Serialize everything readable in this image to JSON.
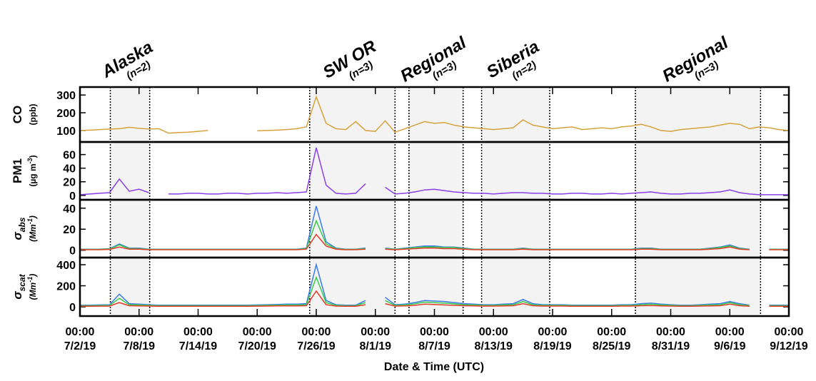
{
  "chart_data": {
    "type": "line",
    "xlabel": "Date & Time (UTC)",
    "xlim": [
      "2019-07-02T00:00",
      "2019-09-12T00:00"
    ],
    "xticks": [
      {
        "value": "2019-07-02T00:00",
        "label": [
          "00:00",
          "7/2/19"
        ]
      },
      {
        "value": "2019-07-08T00:00",
        "label": [
          "00:00",
          "7/8/19"
        ]
      },
      {
        "value": "2019-07-14T00:00",
        "label": [
          "00:00",
          "7/14/19"
        ]
      },
      {
        "value": "2019-07-20T00:00",
        "label": [
          "00:00",
          "7/20/19"
        ]
      },
      {
        "value": "2019-07-26T00:00",
        "label": [
          "00:00",
          "7/26/19"
        ]
      },
      {
        "value": "2019-08-01T00:00",
        "label": [
          "00:00",
          "8/1/19"
        ]
      },
      {
        "value": "2019-08-07T00:00",
        "label": [
          "00:00",
          "8/7/19"
        ]
      },
      {
        "value": "2019-08-13T00:00",
        "label": [
          "00:00",
          "8/13/19"
        ]
      },
      {
        "value": "2019-08-19T00:00",
        "label": [
          "00:00",
          "8/19/19"
        ]
      },
      {
        "value": "2019-08-25T00:00",
        "label": [
          "00:00",
          "8/25/19"
        ]
      },
      {
        "value": "2019-08-31T00:00",
        "label": [
          "00:00",
          "8/31/19"
        ]
      },
      {
        "value": "2019-09-06T00:00",
        "label": [
          "00:00",
          "9/6/19"
        ]
      },
      {
        "value": "2019-09-12T00:00",
        "label": [
          "00:00",
          "9/12/19"
        ]
      }
    ],
    "events": [
      {
        "name": "Alaska",
        "n": "(n=2)",
        "start": "2019-07-05T02:00",
        "end": "2019-07-09T02:00"
      },
      {
        "name": "SW OR",
        "n": "(n=3)",
        "start": "2019-07-25T08:00",
        "end": "2019-08-03T00:00"
      },
      {
        "name": "Regional",
        "n": "(n=3)",
        "start": "2019-08-04T10:00",
        "end": "2019-08-09T22:00"
      },
      {
        "name": "Siberia",
        "n": "(n=2)",
        "start": "2019-08-11T19:00",
        "end": "2019-08-18T17:00"
      },
      {
        "name": "Regional",
        "n": "(n=3)",
        "start": "2019-08-27T10:00",
        "end": "2019-09-09T03:00"
      }
    ],
    "x": [
      "2019-07-02",
      "2019-07-03",
      "2019-07-04",
      "2019-07-05",
      "2019-07-06",
      "2019-07-07",
      "2019-07-08",
      "2019-07-09",
      "2019-07-10",
      "2019-07-11",
      "2019-07-12",
      "2019-07-13",
      "2019-07-14",
      "2019-07-15",
      "2019-07-16",
      "2019-07-17",
      "2019-07-18",
      "2019-07-19",
      "2019-07-20",
      "2019-07-21",
      "2019-07-22",
      "2019-07-23",
      "2019-07-24",
      "2019-07-25",
      "2019-07-26",
      "2019-07-27",
      "2019-07-28",
      "2019-07-29",
      "2019-07-30",
      "2019-07-31",
      "2019-08-01",
      "2019-08-02",
      "2019-08-03",
      "2019-08-04",
      "2019-08-05",
      "2019-08-06",
      "2019-08-07",
      "2019-08-08",
      "2019-08-09",
      "2019-08-10",
      "2019-08-11",
      "2019-08-12",
      "2019-08-13",
      "2019-08-14",
      "2019-08-15",
      "2019-08-16",
      "2019-08-17",
      "2019-08-18",
      "2019-08-19",
      "2019-08-20",
      "2019-08-21",
      "2019-08-22",
      "2019-08-23",
      "2019-08-24",
      "2019-08-25",
      "2019-08-26",
      "2019-08-27",
      "2019-08-28",
      "2019-08-29",
      "2019-08-30",
      "2019-08-31",
      "2019-09-01",
      "2019-09-02",
      "2019-09-03",
      "2019-09-04",
      "2019-09-05",
      "2019-09-06",
      "2019-09-07",
      "2019-09-08",
      "2019-09-09",
      "2019-09-10",
      "2019-09-11",
      "2019-09-12"
    ],
    "panels": [
      {
        "ylabel": "CO",
        "unit": "(ppb)",
        "italic": false,
        "ylim": [
          35,
          345
        ],
        "yticks": [
          100,
          200,
          300
        ],
        "series": [
          {
            "color": "#d6a23d",
            "values": [
              100,
              102,
              105,
              108,
              110,
              118,
              112,
              108,
              110,
              85,
              88,
              90,
              95,
              100,
              null,
              null,
              null,
              null,
              98,
              100,
              102,
              105,
              110,
              120,
              290,
              140,
              110,
              105,
              150,
              100,
              95,
              155,
              90,
              110,
              130,
              150,
              140,
              145,
              130,
              120,
              115,
              110,
              105,
              110,
              115,
              160,
              130,
              120,
              110,
              115,
              120,
              105,
              110,
              115,
              110,
              120,
              125,
              135,
              120,
              100,
              95,
              105,
              110,
              115,
              120,
              130,
              140,
              135,
              110,
              120,
              115,
              105,
              100
            ]
          }
        ]
      },
      {
        "ylabel": "PM1",
        "unit": "(µg m",
        "unit_sup": "-3",
        "unit_end": ")",
        "italic": false,
        "ylim": [
          -6.5,
          78.5
        ],
        "yticks": [
          0,
          20,
          40,
          60
        ],
        "series": [
          {
            "color": "#8b3fe6",
            "values": [
              1,
              2,
              3,
              4,
              24,
              6,
              9,
              4,
              null,
              2,
              2,
              3,
              3,
              2,
              2,
              3,
              3,
              2,
              3,
              3,
              4,
              3,
              4,
              5,
              70,
              15,
              3,
              2,
              3,
              17,
              null,
              12,
              2,
              3,
              5,
              8,
              9,
              7,
              5,
              4,
              3,
              3,
              2,
              3,
              4,
              4,
              3,
              3,
              2,
              2,
              3,
              3,
              2,
              2,
              3,
              2,
              3,
              4,
              5,
              3,
              2,
              2,
              3,
              3,
              4,
              5,
              8,
              4,
              2,
              1,
              1,
              1,
              1
            ]
          }
        ]
      },
      {
        "ylabel": "σ",
        "ylabel_sub": "abs",
        "unit": "(Mm",
        "unit_sup": "-1",
        "unit_end": ")",
        "italic": true,
        "ylim": [
          -7,
          48
        ],
        "yticks": [
          0,
          20,
          40
        ],
        "series": [
          {
            "color": "#3a7be8",
            "values": [
              1,
              1,
              1,
              1.5,
              6,
              2,
              2,
              1,
              1,
              1,
              1,
              1,
              1,
              1,
              1,
              1,
              1,
              1,
              1,
              1,
              1,
              1,
              1,
              2,
              42,
              8,
              2,
              1,
              1,
              2,
              null,
              2,
              1,
              2,
              3,
              4,
              4,
              3,
              3,
              2,
              1,
              1,
              1,
              1,
              1,
              2,
              1,
              1,
              1,
              1,
              1,
              1,
              1,
              1,
              1,
              1,
              1,
              2,
              2,
              1,
              1,
              1,
              1,
              1,
              2,
              3,
              5,
              2,
              1,
              null,
              1,
              1,
              1
            ]
          },
          {
            "color": "#3ccc4a",
            "values": [
              0.8,
              0.8,
              0.8,
              1.2,
              5,
              1.5,
              1.5,
              0.8,
              0.8,
              0.8,
              0.8,
              0.8,
              0.8,
              0.8,
              0.8,
              0.8,
              0.8,
              0.8,
              0.8,
              0.8,
              0.8,
              0.8,
              0.8,
              1.5,
              28,
              6,
              1.5,
              0.8,
              0.8,
              1.5,
              null,
              1.5,
              0.8,
              1.5,
              2.5,
              3,
              3,
              2.5,
              2.5,
              1.5,
              0.8,
              0.8,
              0.8,
              0.8,
              0.8,
              1.5,
              0.8,
              0.8,
              0.8,
              0.8,
              0.8,
              0.8,
              0.8,
              0.8,
              0.8,
              0.8,
              0.8,
              1.5,
              1.5,
              0.8,
              0.8,
              0.8,
              0.8,
              0.8,
              1.5,
              2.5,
              4,
              1.5,
              0.8,
              null,
              0.8,
              0.8,
              0.8
            ]
          },
          {
            "color": "#e33b2b",
            "values": [
              0.5,
              0.5,
              0.5,
              0.8,
              3,
              1,
              1,
              0.5,
              0.5,
              0.5,
              0.5,
              0.5,
              0.5,
              0.5,
              0.5,
              0.5,
              0.5,
              0.5,
              0.5,
              0.5,
              0.5,
              0.5,
              0.5,
              1,
              15,
              4,
              1,
              0.5,
              0.5,
              1,
              null,
              1,
              0.5,
              1,
              1.5,
              2,
              2,
              1.5,
              1.5,
              1,
              0.5,
              0.5,
              0.5,
              0.5,
              0.5,
              1,
              0.5,
              0.5,
              0.5,
              0.5,
              0.5,
              0.5,
              0.5,
              0.5,
              0.5,
              0.5,
              0.5,
              1,
              1,
              0.5,
              0.5,
              0.5,
              0.5,
              0.5,
              1,
              1.5,
              3,
              1,
              0.5,
              null,
              0.5,
              0.5,
              0.5
            ]
          }
        ]
      },
      {
        "ylabel": "σ",
        "ylabel_sub": "scat",
        "unit": "(Mm",
        "unit_sup": "-1",
        "unit_end": ")",
        "italic": true,
        "ylim": [
          -88,
          468
        ],
        "yticks": [
          0,
          200,
          400
        ],
        "series": [
          {
            "color": "#3a7be8",
            "values": [
              15,
              15,
              18,
              20,
              120,
              30,
              25,
              20,
              15,
              15,
              15,
              15,
              15,
              15,
              15,
              15,
              15,
              15,
              18,
              20,
              22,
              25,
              25,
              30,
              400,
              60,
              20,
              15,
              15,
              60,
              null,
              90,
              20,
              25,
              40,
              60,
              55,
              50,
              40,
              30,
              25,
              20,
              20,
              25,
              30,
              70,
              30,
              20,
              20,
              20,
              15,
              15,
              15,
              15,
              15,
              20,
              20,
              30,
              35,
              25,
              20,
              15,
              15,
              20,
              25,
              30,
              50,
              30,
              15,
              null,
              15,
              15,
              15
            ]
          },
          {
            "color": "#3ccc4a",
            "values": [
              10,
              10,
              12,
              14,
              80,
              20,
              18,
              14,
              10,
              10,
              10,
              10,
              10,
              10,
              10,
              10,
              10,
              10,
              12,
              14,
              15,
              18,
              18,
              20,
              280,
              40,
              14,
              10,
              10,
              40,
              null,
              60,
              14,
              18,
              28,
              45,
              40,
              35,
              28,
              20,
              18,
              14,
              14,
              18,
              20,
              50,
              20,
              14,
              14,
              14,
              10,
              10,
              10,
              10,
              10,
              14,
              14,
              20,
              25,
              18,
              14,
              10,
              10,
              14,
              18,
              20,
              40,
              20,
              10,
              null,
              10,
              10,
              10
            ]
          },
          {
            "color": "#e33b2b",
            "values": [
              5,
              5,
              6,
              7,
              40,
              10,
              9,
              7,
              5,
              5,
              5,
              5,
              5,
              5,
              5,
              5,
              5,
              5,
              6,
              7,
              8,
              9,
              9,
              10,
              150,
              20,
              7,
              5,
              5,
              20,
              null,
              30,
              7,
              9,
              14,
              25,
              22,
              18,
              14,
              10,
              9,
              7,
              7,
              9,
              10,
              30,
              10,
              7,
              7,
              7,
              5,
              5,
              5,
              5,
              5,
              7,
              7,
              10,
              12,
              9,
              7,
              5,
              5,
              7,
              9,
              10,
              25,
              10,
              5,
              null,
              5,
              5,
              5
            ]
          }
        ]
      }
    ]
  }
}
